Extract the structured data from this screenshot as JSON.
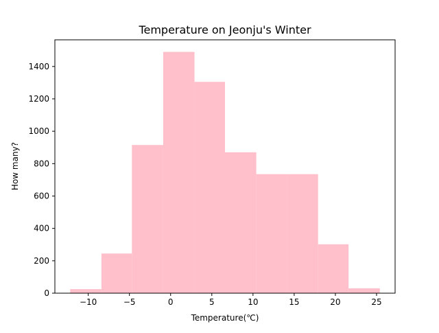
{
  "chart_data": {
    "type": "bar",
    "title": "Temperature on Jeonju's Winter",
    "xlabel": "Temperature(℃)",
    "ylabel": "How many?",
    "bins": [
      {
        "left": -12.2,
        "right": -8.4,
        "value": 25
      },
      {
        "left": -8.4,
        "right": -4.7,
        "value": 245
      },
      {
        "left": -4.7,
        "right": -0.9,
        "value": 915
      },
      {
        "left": -0.9,
        "right": 2.9,
        "value": 1490
      },
      {
        "left": 2.9,
        "right": 6.6,
        "value": 1305
      },
      {
        "left": 6.6,
        "right": 10.4,
        "value": 870
      },
      {
        "left": 10.4,
        "right": 14.1,
        "value": 735
      },
      {
        "left": 14.1,
        "right": 17.9,
        "value": 735
      },
      {
        "left": 17.9,
        "right": 21.6,
        "value": 302
      },
      {
        "left": 21.6,
        "right": 25.4,
        "value": 30
      }
    ],
    "xlim": [
      -14.05,
      27.25
    ],
    "ylim": [
      0,
      1564.5
    ],
    "xticks": [
      -10,
      -5,
      0,
      5,
      10,
      15,
      20,
      25
    ],
    "xtick_labels": [
      "−10",
      "−5",
      "0",
      "5",
      "10",
      "15",
      "20",
      "25"
    ],
    "yticks": [
      0,
      200,
      400,
      600,
      800,
      1000,
      1200,
      1400
    ],
    "ytick_labels": [
      "0",
      "200",
      "400",
      "600",
      "800",
      "1000",
      "1200",
      "1400"
    ],
    "bar_color": "#ffc0cb",
    "grid": false
  }
}
